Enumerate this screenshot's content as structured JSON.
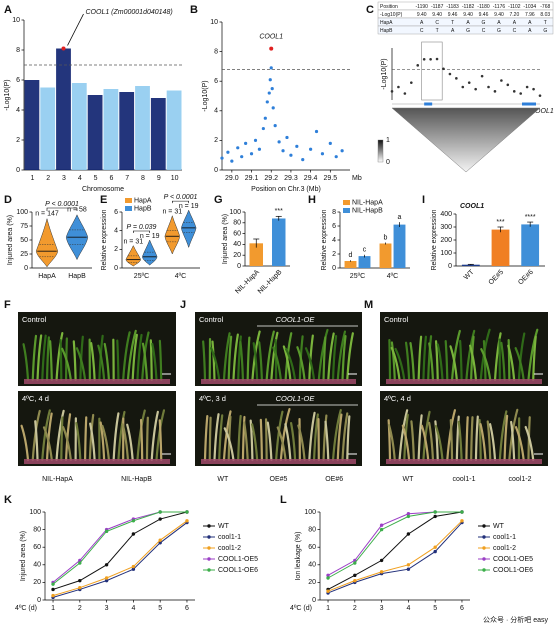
{
  "panel_labels": [
    "A",
    "B",
    "C",
    "D",
    "E",
    "G",
    "H",
    "I",
    "F",
    "J",
    "M",
    "K",
    "L"
  ],
  "chart_data": [
    {
      "type": "manhattan",
      "ylabel": "-Log10(P)",
      "xlabel": "Chromosome",
      "categories": [
        "1",
        "2",
        "3",
        "4",
        "5",
        "6",
        "7",
        "8",
        "9",
        "10"
      ],
      "values": [
        6.0,
        5.5,
        8.1,
        5.8,
        5.0,
        5.4,
        5.2,
        5.6,
        4.8,
        5.3
      ],
      "colors": [
        "#0b1f6e",
        "#8fcbf0"
      ],
      "highlight_color": "#e02020",
      "threshold": 7,
      "ylim": [
        0,
        10
      ],
      "yticks": [
        0,
        2,
        4,
        6,
        8,
        10
      ],
      "annotation": "COOL1 (Zm00001d040148)"
    },
    {
      "type": "scatter",
      "ylabel": "-Log10(P)",
      "xlabel": "Position on Chr.3 (Mb)",
      "xunit": "Mb",
      "x": [
        28.95,
        28.98,
        29.0,
        29.03,
        29.05,
        29.07,
        29.1,
        29.12,
        29.14,
        29.16,
        29.17,
        29.18,
        29.19,
        29.195,
        29.2,
        29.205,
        29.21,
        29.22,
        29.24,
        29.26,
        29.28,
        29.3,
        29.33,
        29.36,
        29.4,
        29.43,
        29.46,
        29.5,
        29.53,
        29.56
      ],
      "y": [
        0.8,
        1.2,
        0.6,
        1.5,
        0.9,
        1.8,
        1.1,
        2.0,
        1.4,
        2.8,
        3.5,
        4.6,
        5.2,
        6.1,
        6.9,
        5.5,
        4.2,
        3.0,
        1.9,
        1.3,
        2.2,
        1.0,
        1.6,
        0.7,
        1.4,
        2.6,
        1.1,
        1.8,
        0.9,
        1.3
      ],
      "color": "#2e7fd9",
      "xlim": [
        28.95,
        29.6
      ],
      "xticks": [
        {
          "value": 29,
          "label": "29.0"
        },
        29.1,
        29.2,
        29.3,
        29.4,
        29.5
      ],
      "ylim": [
        0,
        10
      ],
      "yticks": [
        0,
        2,
        4,
        6,
        8,
        10
      ],
      "threshold": 6.8,
      "highlight": {
        "label": "COOL1",
        "x": 29.2,
        "y": 8.2,
        "color": "#e02020"
      }
    },
    {
      "type": "ld",
      "table": {
        "rows": [
          [
            "Position",
            "-1190",
            "-1187",
            "-1183",
            "-1182",
            "-1180",
            "-1176",
            "-1102",
            "-1034",
            "-768"
          ],
          [
            "-Log10(P)",
            "9.40",
            "9.40",
            "9.46",
            "9.40",
            "9.46",
            "9.40",
            "7.20",
            "7.96",
            "8.03"
          ],
          [
            "HapA",
            "A",
            "C",
            "T",
            "A",
            "G",
            "A",
            "A",
            "A",
            "T"
          ],
          [
            "HapB",
            "C",
            "T",
            "A",
            "G",
            "C",
            "G",
            "C",
            "A",
            "G"
          ]
        ]
      },
      "ylabel": "-Log10(P)",
      "values": [
        2,
        3,
        1.5,
        4,
        8,
        9.4,
        9.4,
        9.46,
        7.2,
        6,
        5,
        3,
        4,
        2.5,
        5.5,
        3,
        2,
        4.5,
        3.5,
        2,
        1.5,
        3,
        2.5,
        1
      ],
      "color": "#333333",
      "ylim": [
        0,
        12
      ],
      "threshold": 7,
      "gene_label": "COOL1",
      "colorbar_ticks": [
        1,
        0
      ]
    },
    {
      "type": "violin",
      "ylabel": "Injured area (%)",
      "categories": [
        "HapA",
        "HapB"
      ],
      "colors": [
        "#f29a2e",
        "#3f8fd8"
      ],
      "min": [
        2,
        15
      ],
      "q1": [
        20,
        42
      ],
      "median": [
        30,
        55
      ],
      "q3": [
        42,
        68
      ],
      "max": [
        88,
        95
      ],
      "n_labels": [
        "n = 147",
        "n = 58"
      ],
      "p_label": "P < 0.0001",
      "ylim": [
        0,
        100
      ],
      "yticks": [
        0,
        25,
        50,
        75,
        100
      ]
    },
    {
      "type": "grouped-violin",
      "ylabel": "Relative expression",
      "categories": [
        "25ºC",
        "4ºC"
      ],
      "series": [
        {
          "name": "HapA",
          "color": "#f29a2e",
          "min": [
            0.2,
            1.5
          ],
          "q1": [
            0.6,
            2.8
          ],
          "median": [
            0.9,
            3.4
          ],
          "q3": [
            1.3,
            4.0
          ],
          "max": [
            2.4,
            5.6
          ],
          "n_labels": [
            "n = 31",
            "n = 31"
          ]
        },
        {
          "name": "HapB",
          "color": "#3f8fd8",
          "min": [
            0.3,
            2.2
          ],
          "q1": [
            0.8,
            3.8
          ],
          "median": [
            1.2,
            4.3
          ],
          "q3": [
            1.7,
            4.9
          ],
          "max": [
            3.0,
            6.2
          ],
          "n_labels": [
            "n = 19",
            "n = 19"
          ]
        }
      ],
      "p_labels": [
        "P = 0.039",
        "P < 0.0001"
      ],
      "ylim": [
        0,
        6
      ],
      "yticks": [
        0,
        2,
        4,
        6
      ]
    },
    {
      "type": "bar",
      "ylabel": "Injured area (%)",
      "categories": [
        "NIL-HapA",
        "NIL-HapB"
      ],
      "values": [
        42,
        88
      ],
      "errors": [
        8,
        4
      ],
      "colors": [
        "#f29a2e",
        "#3f8fd8"
      ],
      "significance": [
        null,
        "***"
      ],
      "ylim": [
        0,
        100
      ],
      "yticks": [
        0,
        20,
        40,
        60,
        80,
        100
      ]
    },
    {
      "type": "grouped-bar",
      "ylabel": "Relative expression",
      "categories": [
        "25ºC",
        "4ºC"
      ],
      "series": [
        {
          "name": "NIL-HapA",
          "color": "#f29a2e",
          "values": [
            1.0,
            3.5
          ],
          "errors": [
            0.1,
            0.15
          ],
          "letters": [
            "d",
            "b"
          ]
        },
        {
          "name": "NIL-HapB",
          "color": "#3f8fd8",
          "values": [
            1.7,
            6.2
          ],
          "errors": [
            0.2,
            0.35
          ],
          "letters": [
            "c",
            "a"
          ]
        }
      ],
      "ylim": [
        0,
        8
      ],
      "yticks": [
        0,
        2,
        4,
        6,
        8
      ]
    },
    {
      "type": "bar",
      "title": "COOL1",
      "ylabel": "Relative expression",
      "categories": [
        "WT",
        "OE#5",
        "OE#6"
      ],
      "values": [
        10,
        280,
        320
      ],
      "errors": [
        3,
        20,
        18
      ],
      "colors": [
        "#1d3b8b",
        "#f07f23",
        "#3f8fd8"
      ],
      "significance": [
        null,
        "***",
        "****"
      ],
      "ylim": [
        0,
        400
      ],
      "yticks": [
        0,
        100,
        200,
        300,
        400
      ]
    },
    {
      "type": "line",
      "ylabel": "Injured area (%)",
      "xlabel": "4ºC (d)",
      "x": [
        1,
        2,
        3,
        4,
        5,
        6
      ],
      "xlim": [
        0.7,
        6.3
      ],
      "xticks": [
        1,
        2,
        3,
        4,
        5,
        6
      ],
      "ylim": [
        0,
        100
      ],
      "yticks": [
        0,
        20,
        40,
        60,
        80,
        100
      ],
      "series": [
        {
          "name": "WT",
          "color": "#111111",
          "values": [
            12,
            22,
            40,
            75,
            92,
            100
          ]
        },
        {
          "name": "cool1-1",
          "color": "#22307a",
          "values": [
            3,
            12,
            22,
            35,
            65,
            88
          ]
        },
        {
          "name": "cool1-2",
          "color": "#f0a020",
          "values": [
            5,
            14,
            25,
            38,
            68,
            90
          ]
        },
        {
          "name": "COOL1-OE5",
          "color": "#9b3fc6",
          "values": [
            20,
            45,
            80,
            92,
            100,
            100
          ]
        },
        {
          "name": "COOL1-OE6",
          "color": "#3cae4a",
          "values": [
            18,
            42,
            78,
            90,
            100,
            100
          ]
        }
      ]
    },
    {
      "type": "line",
      "ylabel": "Ion leakage (%)",
      "xlabel": "4ºC (d)",
      "x": [
        1,
        2,
        3,
        4,
        5,
        6
      ],
      "xlim": [
        0.7,
        6.3
      ],
      "xticks": [
        1,
        2,
        3,
        4,
        5,
        6
      ],
      "ylim": [
        0,
        100
      ],
      "yticks": [
        0,
        20,
        40,
        60,
        80,
        100
      ],
      "series": [
        {
          "name": "WT",
          "color": "#111111",
          "values": [
            12,
            28,
            45,
            75,
            95,
            100
          ]
        },
        {
          "name": "cool1-1",
          "color": "#22307a",
          "values": [
            8,
            20,
            30,
            35,
            55,
            88
          ]
        },
        {
          "name": "cool1-2",
          "color": "#f0a020",
          "values": [
            10,
            22,
            32,
            40,
            60,
            90
          ]
        },
        {
          "name": "COOL1-OE5",
          "color": "#9b3fc6",
          "values": [
            28,
            45,
            85,
            98,
            100,
            100
          ]
        },
        {
          "name": "COOL1-OE6",
          "color": "#3cae4a",
          "values": [
            25,
            42,
            80,
            95,
            100,
            100
          ]
        }
      ]
    }
  ],
  "photos": [
    {
      "top_label": "Control",
      "bottom_label": "4ºC, 4 d",
      "captions": [
        "NIL-HapA",
        "NIL-HapB"
      ]
    },
    {
      "top_label": "Control",
      "top_tag": "COOL1-OE",
      "bottom_label": "4ºC, 3 d",
      "bottom_tag": "COOL1-OE",
      "captions": [
        "WT",
        "OE#5",
        "OE#6"
      ]
    },
    {
      "top_label": "Control",
      "bottom_label": "4ºC, 4 d",
      "captions": [
        "WT",
        "cool1-1",
        "cool1-2"
      ]
    }
  ],
  "watermark": "公众号 · 分析吧 easy"
}
